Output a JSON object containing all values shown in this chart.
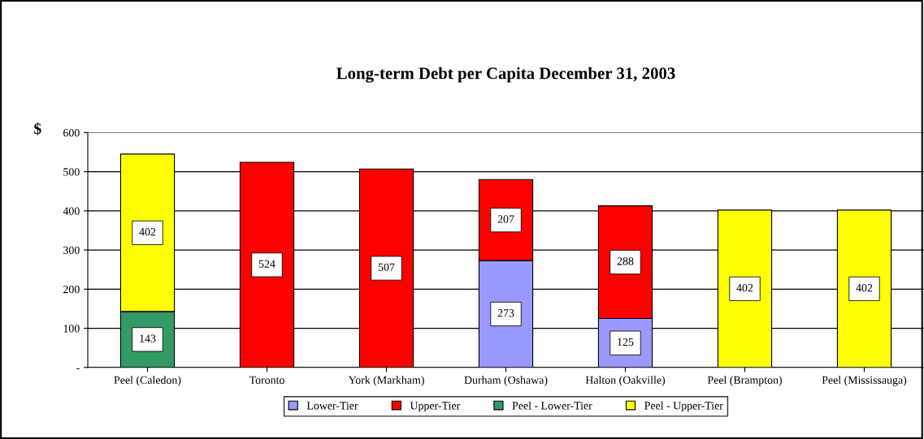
{
  "chart_data": {
    "type": "bar",
    "title": "Long-term Debt per Capita December 31, 2003",
    "ylabel": "$",
    "categories": [
      "Peel (Caledon)",
      "Toronto",
      "York (Markham)",
      "Durham (Oshawa)",
      "Halton (Oakville)",
      "Peel (Brampton)",
      "Peel (Mississauga)"
    ],
    "series": [
      {
        "name": "Lower-Tier",
        "color": "#9999ff",
        "values": [
          null,
          null,
          null,
          273,
          125,
          null,
          null
        ]
      },
      {
        "name": "Upper-Tier",
        "color": "#ff0000",
        "values": [
          null,
          524,
          507,
          207,
          288,
          null,
          null
        ]
      },
      {
        "name": "Peel - Lower-Tier",
        "color": "#339966",
        "values": [
          143,
          null,
          null,
          null,
          null,
          null,
          null
        ]
      },
      {
        "name": "Peel - Upper-Tier",
        "color": "#ffff00",
        "values": [
          402,
          null,
          null,
          null,
          null,
          402,
          402
        ]
      }
    ],
    "stacked": true,
    "data_labels": true,
    "grid": "y",
    "legend": "bottom",
    "ylim": [
      0,
      600
    ],
    "yticks": [
      {
        "value": 0,
        "label": "-"
      },
      100,
      200,
      300,
      400,
      500,
      600
    ]
  }
}
